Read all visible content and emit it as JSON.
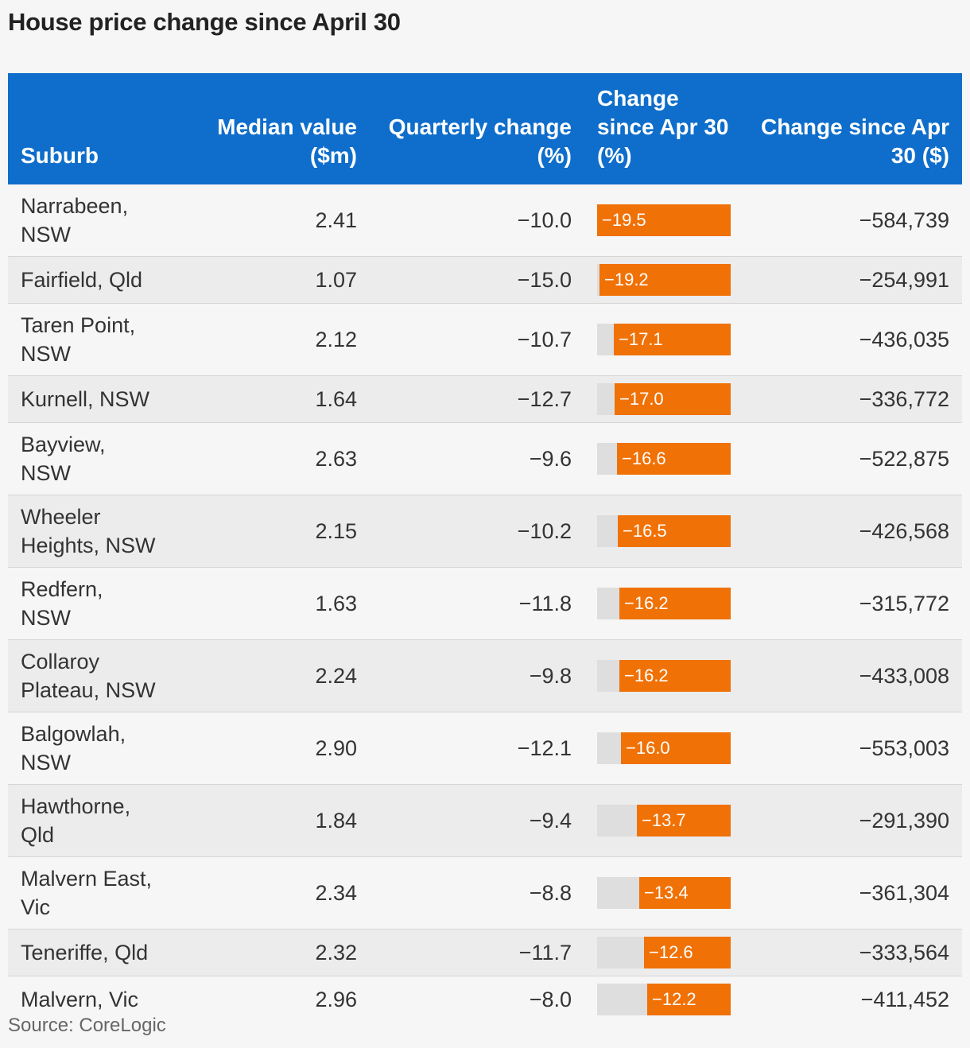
{
  "title": "House price change since April 30",
  "source": "Source: CoreLogic",
  "colors": {
    "header_bg": "#0f6ecb",
    "bar": "#f07106",
    "bar_track": "#dedede"
  },
  "chart_data": {
    "type": "table",
    "bar_scale_max": 19.5,
    "columns": [
      "Suburb",
      "Median value ($m)",
      "Quarterly change (%)",
      "Change since Apr 30 (%)",
      "Change since Apr 30 ($)"
    ],
    "rows": [
      {
        "suburb": "Narrabeen, NSW",
        "median": "2.41",
        "quarterly": "−10.0",
        "pct": -19.5,
        "pct_label": "−19.5",
        "dollars": "−584,739"
      },
      {
        "suburb": "Fairfield, Qld",
        "median": "1.07",
        "quarterly": "−15.0",
        "pct": -19.2,
        "pct_label": "−19.2",
        "dollars": "−254,991"
      },
      {
        "suburb": "Taren Point, NSW",
        "median": "2.12",
        "quarterly": "−10.7",
        "pct": -17.1,
        "pct_label": "−17.1",
        "dollars": "−436,035"
      },
      {
        "suburb": "Kurnell, NSW",
        "median": "1.64",
        "quarterly": "−12.7",
        "pct": -17.0,
        "pct_label": "−17.0",
        "dollars": "−336,772"
      },
      {
        "suburb": "Bayview, NSW",
        "median": "2.63",
        "quarterly": "−9.6",
        "pct": -16.6,
        "pct_label": "−16.6",
        "dollars": "−522,875"
      },
      {
        "suburb": "Wheeler Heights, NSW",
        "median": "2.15",
        "quarterly": "−10.2",
        "pct": -16.5,
        "pct_label": "−16.5",
        "dollars": "−426,568"
      },
      {
        "suburb": "Redfern, NSW",
        "median": "1.63",
        "quarterly": "−11.8",
        "pct": -16.2,
        "pct_label": "−16.2",
        "dollars": "−315,772"
      },
      {
        "suburb": "Collaroy Plateau, NSW",
        "median": "2.24",
        "quarterly": "−9.8",
        "pct": -16.2,
        "pct_label": "−16.2",
        "dollars": "−433,008"
      },
      {
        "suburb": "Balgowlah, NSW",
        "median": "2.90",
        "quarterly": "−12.1",
        "pct": -16.0,
        "pct_label": "−16.0",
        "dollars": "−553,003"
      },
      {
        "suburb": "Hawthorne, Qld",
        "median": "1.84",
        "quarterly": "−9.4",
        "pct": -13.7,
        "pct_label": "−13.7",
        "dollars": "−291,390"
      },
      {
        "suburb": "Malvern East, Vic",
        "median": "2.34",
        "quarterly": "−8.8",
        "pct": -13.4,
        "pct_label": "−13.4",
        "dollars": "−361,304"
      },
      {
        "suburb": "Teneriffe, Qld",
        "median": "2.32",
        "quarterly": "−11.7",
        "pct": -12.6,
        "pct_label": "−12.6",
        "dollars": "−333,564"
      },
      {
        "suburb": "Malvern, Vic",
        "median": "2.96",
        "quarterly": "−8.0",
        "pct": -12.2,
        "pct_label": "−12.2",
        "dollars": "−411,452"
      }
    ]
  }
}
